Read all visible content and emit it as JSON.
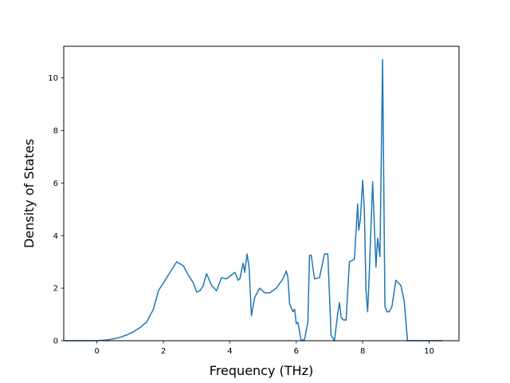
{
  "chart_data": {
    "type": "line",
    "title": "",
    "xlabel": "Frequency (THz)",
    "ylabel": "Density of States",
    "xlim": [
      -1.0,
      10.9
    ],
    "ylim": [
      0,
      11.2
    ],
    "xticks": [
      0,
      2,
      4,
      6,
      8,
      10
    ],
    "yticks": [
      0,
      2,
      4,
      6,
      8,
      10
    ],
    "grid": false,
    "line_color": "#1f77b4",
    "series": [
      {
        "x": [
          -0.97,
          -0.5,
          0.0,
          0.3,
          0.5,
          0.7,
          0.9,
          1.1,
          1.3,
          1.5,
          1.7,
          1.85,
          2.0,
          2.2,
          2.4,
          2.6,
          2.75,
          2.9,
          3.0,
          3.1,
          3.2,
          3.3,
          3.45,
          3.6,
          3.75,
          3.9,
          4.05,
          4.15,
          4.25,
          4.3,
          4.4,
          4.45,
          4.52,
          4.58,
          4.65,
          4.75,
          4.9,
          5.05,
          5.2,
          5.4,
          5.6,
          5.7,
          5.75,
          5.8,
          5.9,
          5.95,
          6.0,
          6.05,
          6.15,
          6.25,
          6.35,
          6.4,
          6.45,
          6.55,
          6.7,
          6.85,
          6.95,
          7.05,
          7.15,
          7.25,
          7.3,
          7.35,
          7.4,
          7.5,
          7.6,
          7.75,
          7.85,
          7.88,
          7.93,
          8.0,
          8.05,
          8.1,
          8.15,
          8.2,
          8.3,
          8.4,
          8.45,
          8.52,
          8.6,
          8.67,
          8.74,
          8.8,
          8.88,
          9.0,
          9.15,
          9.25,
          9.35,
          9.45,
          9.5,
          9.6,
          10.0,
          10.4
        ],
        "y": [
          0.0,
          0.0,
          0.0,
          0.03,
          0.07,
          0.13,
          0.22,
          0.34,
          0.5,
          0.72,
          1.2,
          1.9,
          2.2,
          2.6,
          3.0,
          2.85,
          2.5,
          2.2,
          1.85,
          1.9,
          2.1,
          2.55,
          2.1,
          1.9,
          2.4,
          2.35,
          2.5,
          2.6,
          2.3,
          2.35,
          2.95,
          2.6,
          3.3,
          2.8,
          0.95,
          1.65,
          2.0,
          1.82,
          1.82,
          2.0,
          2.35,
          2.65,
          2.4,
          1.4,
          1.1,
          1.2,
          0.65,
          0.7,
          0.0,
          0.05,
          0.7,
          3.25,
          3.25,
          2.35,
          2.4,
          3.3,
          3.3,
          0.2,
          0.0,
          1.05,
          1.45,
          0.9,
          0.8,
          0.78,
          3.0,
          3.1,
          5.2,
          4.2,
          4.6,
          6.1,
          5.0,
          1.9,
          1.1,
          2.6,
          6.05,
          2.8,
          3.9,
          3.2,
          10.7,
          1.3,
          1.1,
          1.1,
          1.3,
          2.3,
          2.1,
          1.5,
          0.0,
          0.0,
          0.0,
          0.0,
          0.0,
          0.0
        ]
      }
    ]
  }
}
